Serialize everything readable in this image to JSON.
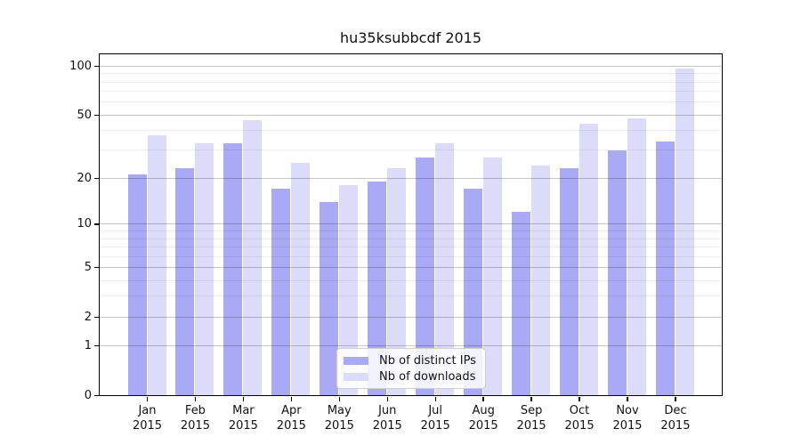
{
  "chart_data": {
    "type": "bar",
    "title": "hu35ksubbcdf 2015",
    "categories": [
      "Jan 2015",
      "Feb 2015",
      "Mar 2015",
      "Apr 2015",
      "May 2015",
      "Jun 2015",
      "Jul 2015",
      "Aug 2015",
      "Sep 2015",
      "Oct 2015",
      "Nov 2015",
      "Dec 2015"
    ],
    "series": [
      {
        "name": "Nb of distinct IPs",
        "color": "#a9a9f6",
        "values": [
          21,
          23,
          33,
          17,
          14,
          19,
          27,
          17,
          12,
          23,
          30,
          34
        ]
      },
      {
        "name": "Nb of downloads",
        "color": "#dcdcfa",
        "values": [
          37,
          33,
          46,
          25,
          18,
          23,
          33,
          27,
          24,
          44,
          47,
          96
        ]
      }
    ],
    "yscale": "log1p",
    "ylim": [
      0,
      118
    ],
    "yticks": [
      0,
      1,
      2,
      5,
      10,
      20,
      50,
      100
    ],
    "minor_yticks": [
      3,
      4,
      6,
      7,
      8,
      9,
      30,
      40,
      60,
      70,
      80,
      90
    ],
    "grid": "major+minor horizontal",
    "legend_position": "lower center",
    "colors": {
      "spine": "#000000",
      "major_grid": "rgba(0,0,0,0.22)",
      "minor_grid": "rgba(0,0,0,0.065)",
      "text": "#111111",
      "background": "#ffffff"
    }
  }
}
